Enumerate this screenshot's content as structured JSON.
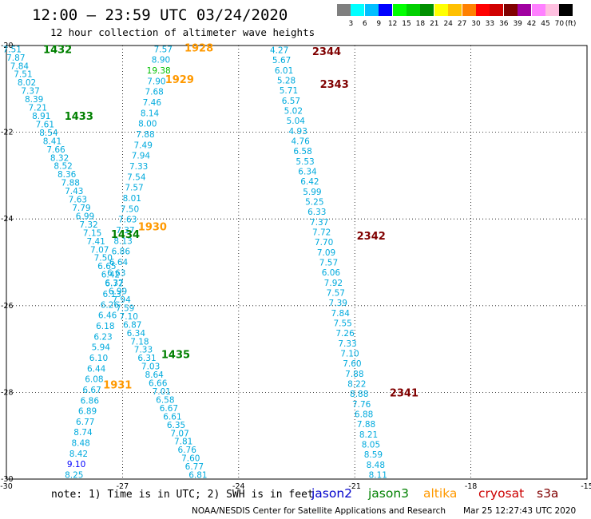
{
  "header": {
    "title": "12:00 — 23:59 UTC 03/24/2020",
    "subtitle": "12 hour collection of altimeter wave heights"
  },
  "colorbar": {
    "colors": [
      "#7f7f7f",
      "#00ffff",
      "#00bfff",
      "#0000ff",
      "#00ff00",
      "#00d000",
      "#009000",
      "#ffff00",
      "#ffc000",
      "#ff8000",
      "#ff0000",
      "#d00000",
      "#800000",
      "#a000a0",
      "#ff80ff",
      "#ffc0e0",
      "#000000"
    ],
    "labels": [
      "3",
      "6",
      "9",
      "12",
      "15",
      "18",
      "21",
      "24",
      "27",
      "30",
      "33",
      "36",
      "39",
      "42",
      "45",
      "70"
    ],
    "unit": "(ft)"
  },
  "chart_data": {
    "type": "scatter",
    "xlim": [
      -30,
      -15
    ],
    "ylim": [
      -30,
      -20
    ],
    "x_ticks": [
      "-30",
      "-27",
      "-24",
      "-21",
      "-18",
      "-15"
    ],
    "y_ticks": [
      "-20",
      "-22",
      "-24",
      "-26",
      "-28",
      "-30"
    ],
    "grid": true,
    "track_colors": {
      "jason3_time": "#008000",
      "altika_time": "#ff9900",
      "cryosat_time": "#800000",
      "cryosat_wave": "#00ccdd",
      "wave": "#00aadd"
    },
    "time_labels": [
      {
        "text": "1432",
        "x": -29.05,
        "y": -20.08,
        "color": "jason3"
      },
      {
        "text": "1433",
        "x": -28.5,
        "y": -21.62,
        "color": "jason3"
      },
      {
        "text": "1434",
        "x": -27.3,
        "y": -24.35,
        "color": "jason3"
      },
      {
        "text": "1435",
        "x": -26.0,
        "y": -27.12,
        "color": "jason3"
      },
      {
        "text": "1928",
        "x": -25.4,
        "y": -20.05,
        "color": "altika"
      },
      {
        "text": "1929",
        "x": -25.9,
        "y": -20.77,
        "color": "altika"
      },
      {
        "text": "1930",
        "x": -26.6,
        "y": -24.17,
        "color": "altika"
      },
      {
        "text": "1931",
        "x": -27.5,
        "y": -27.82,
        "color": "altika"
      },
      {
        "text": "2344",
        "x": -22.1,
        "y": -20.13,
        "color": "cryosat"
      },
      {
        "text": "2343",
        "x": -21.9,
        "y": -20.88,
        "color": "cryosat"
      },
      {
        "text": "2342",
        "x": -20.95,
        "y": -24.38,
        "color": "cryosat"
      },
      {
        "text": "2341",
        "x": -20.1,
        "y": -28.0,
        "color": "cryosat"
      }
    ],
    "series": [
      {
        "x0": -29.85,
        "x1": -25.05,
        "y0": -20.08,
        "y1": -29.9,
        "values": [
          "7.51",
          "7.87",
          "7.84",
          "7.51",
          "8.02",
          "7.37",
          "8.39",
          "7.21",
          "8.91",
          "7.61",
          "8.54",
          "8.41",
          "7.66",
          "8.32",
          "8.52",
          "8.36",
          "7.88",
          "7.43",
          "7.63",
          "7.79",
          "6.99",
          "7.32",
          "7.15",
          "7.41",
          "7.07",
          "7.50",
          "6.65",
          "6.42",
          "6.37",
          "6.99",
          "7.94",
          "7.59",
          "7.10",
          "6.87",
          "6.34",
          "7.18",
          "7.33",
          "6.31",
          "7.03",
          "8.64",
          "6.66",
          "7.01",
          "6.58",
          "6.67",
          "6.61",
          "6.35",
          "7.07",
          "7.81",
          "6.76",
          "7.60",
          "6.77",
          "6.81"
        ]
      },
      {
        "x0": -25.95,
        "x1": -28.25,
        "y0": -20.08,
        "y1": -29.9,
        "values": [
          "7.57",
          "8.90",
          "19.38",
          "7.90",
          "7.68",
          "7.46",
          "8.14",
          "8.00",
          "7.88",
          "7.49",
          "7.94",
          "7.33",
          "7.54",
          "7.57",
          "8.01",
          "7.50",
          "7.63",
          "7.37",
          "8.13",
          "6.86",
          "6.64",
          "6.63",
          "6.72",
          "6.13",
          "6.26",
          "6.46",
          "6.18",
          "6.23",
          "5.94",
          "6.10",
          "6.44",
          "6.08",
          "6.67",
          "6.86",
          "6.89",
          "6.77",
          "8.74",
          "8.48",
          "8.42",
          "9.10",
          "8.25"
        ]
      },
      {
        "x0": -22.95,
        "x1": -20.4,
        "y0": -20.1,
        "y1": -29.9,
        "values": [
          "4.27",
          "5.67",
          "6.01",
          "5.28",
          "5.71",
          "6.57",
          "5.02",
          "5.04",
          "4.93",
          "4.76",
          "6.58",
          "5.53",
          "6.34",
          "6.42",
          "5.99",
          "5.25",
          "6.33",
          "7.37",
          "7.72",
          "7.70",
          "7.09",
          "7.57",
          "6.06",
          "7.92",
          "7.57",
          "7.39",
          "7.84",
          "7.55",
          "7.26",
          "7.33",
          "7.10",
          "7.60",
          "7.88",
          "8.22",
          "8.88",
          "7.76",
          "6.88",
          "7.88",
          "8.21",
          "8.05",
          "8.59",
          "8.48",
          "8.11"
        ]
      }
    ]
  },
  "notes": {
    "note": "note: 1) Time is in UTC; 2) SWH is in feet",
    "legend": [
      {
        "name": "jason2",
        "color": "#0000cc"
      },
      {
        "name": "jason3",
        "color": "#008000"
      },
      {
        "name": "altika",
        "color": "#ff9900"
      },
      {
        "name": "cryosat",
        "color": "#cc0000"
      },
      {
        "name": "s3a",
        "color": "#800000"
      }
    ],
    "footer": "NOAA/NESDIS Center for Satellite Applications and Research",
    "timestamp": "Mar 25 12:27:43 UTC 2020"
  }
}
